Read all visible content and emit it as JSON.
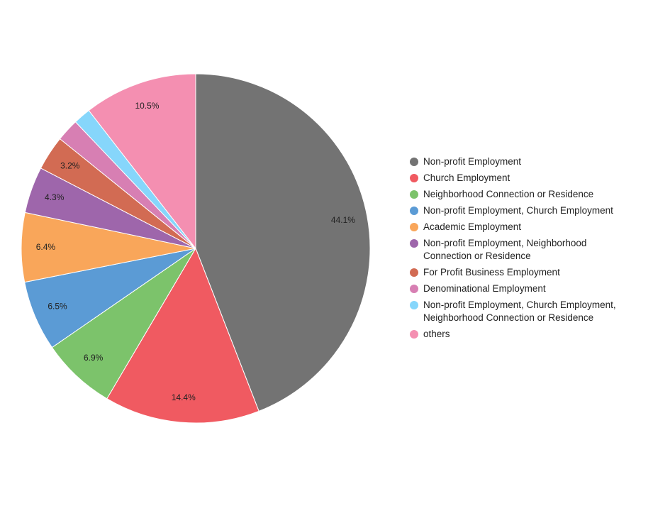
{
  "chart_data": {
    "type": "pie",
    "legend_position": "right",
    "slices": [
      {
        "name": "Non-profit Employment",
        "value": 44.1,
        "label": "44.1%",
        "color": "#737373"
      },
      {
        "name": "Church Employment",
        "value": 14.4,
        "label": "14.4%",
        "color": "#f05a61"
      },
      {
        "name": "Neighborhood Connection or Residence",
        "value": 6.9,
        "label": "6.9%",
        "color": "#7cc36b"
      },
      {
        "name": "Non-profit Employment, Church Employment",
        "value": 6.5,
        "label": "6.5%",
        "color": "#5b9bd5"
      },
      {
        "name": "Academic Employment",
        "value": 6.4,
        "label": "6.4%",
        "color": "#f9a65a"
      },
      {
        "name": "Non-profit Employment, Neighborhood Connection or Residence",
        "value": 4.3,
        "label": "4.3%",
        "color": "#9e66ab"
      },
      {
        "name": "For Profit Business Employment",
        "value": 3.2,
        "label": "3.2%",
        "color": "#d26b53"
      },
      {
        "name": "Denominational Employment",
        "value": 2.1,
        "label": "",
        "color": "#d77fb3"
      },
      {
        "name": "Non-profit Employment, Church Employment, Neighborhood Connection or Residence",
        "value": 1.6,
        "label": "",
        "color": "#86d6fb"
      },
      {
        "name": "others",
        "value": 10.5,
        "label": "10.5%",
        "color": "#f48fb1"
      }
    ]
  },
  "legend": {
    "items": [
      {
        "label": "Non-profit Employment",
        "color": "#737373"
      },
      {
        "label": "Church Employment",
        "color": "#f05a61"
      },
      {
        "label": "Neighborhood Connection or Residence",
        "color": "#7cc36b"
      },
      {
        "label": "Non-profit Employment, Church Employment",
        "color": "#5b9bd5"
      },
      {
        "label": "Academic Employment",
        "color": "#f9a65a"
      },
      {
        "label": "Non-profit Employment, Neighborhood Connection or Residence",
        "color": "#9e66ab"
      },
      {
        "label": "For Profit Business Employment",
        "color": "#d26b53"
      },
      {
        "label": "Denominational Employment",
        "color": "#d77fb3"
      },
      {
        "label": "Non-profit Employment, Church Employment, Neighborhood Connection or Residence",
        "color": "#86d6fb"
      },
      {
        "label": "others",
        "color": "#f48fb1"
      }
    ]
  }
}
